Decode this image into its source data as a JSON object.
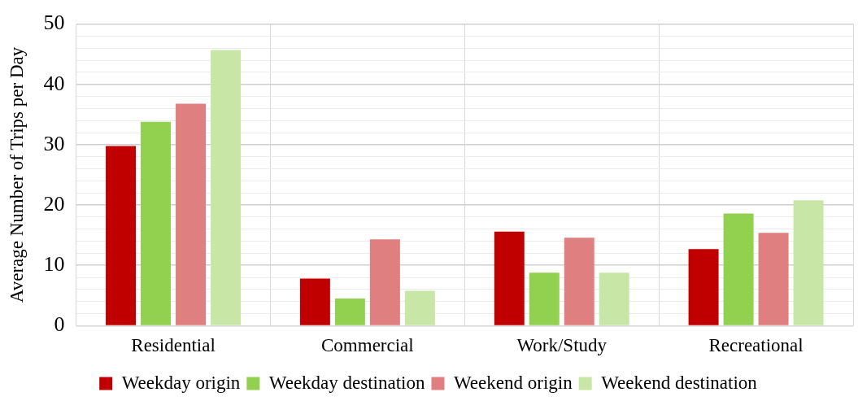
{
  "chart_data": {
    "type": "bar",
    "ylabel": "Average Number of Trips per Day",
    "categories": [
      "Residential",
      "Commercial",
      "Work/Study",
      "Recreational"
    ],
    "series": [
      {
        "name": "Weekday origin",
        "color": "#c00000",
        "values": [
          29.8,
          7.8,
          15.6,
          12.7
        ]
      },
      {
        "name": "Weekday destination",
        "color": "#92d050",
        "values": [
          33.8,
          4.5,
          8.8,
          18.6
        ]
      },
      {
        "name": "Weekend origin",
        "color": "#e07f7f",
        "values": [
          36.8,
          14.3,
          14.6,
          15.4
        ]
      },
      {
        "name": "Weekend destination",
        "color": "#c8e7a7",
        "values": [
          45.7,
          5.8,
          8.8,
          20.8
        ]
      }
    ],
    "ylim": [
      0,
      50
    ],
    "yticks": [
      0,
      {
        "value": 2,
        "label": null
      },
      {
        "value": 4,
        "label": null
      },
      {
        "value": 6,
        "label": null
      },
      {
        "value": 8,
        "label": null
      },
      10,
      {
        "value": 12,
        "label": null
      },
      {
        "value": 14,
        "label": null
      },
      {
        "value": 16,
        "label": null
      },
      {
        "value": 18,
        "label": null
      },
      20,
      {
        "value": 22,
        "label": null
      },
      {
        "value": 24,
        "label": null
      },
      {
        "value": 26,
        "label": null
      },
      {
        "value": 28,
        "label": null
      },
      30,
      {
        "value": 32,
        "label": null
      },
      {
        "value": 34,
        "label": null
      },
      {
        "value": 36,
        "label": null
      },
      {
        "value": 38,
        "label": null
      },
      40,
      {
        "value": 42,
        "label": null
      },
      {
        "value": 44,
        "label": null
      },
      {
        "value": 46,
        "label": null
      },
      {
        "value": 48,
        "label": null
      },
      50
    ],
    "grid": true,
    "legend": "bottom"
  }
}
